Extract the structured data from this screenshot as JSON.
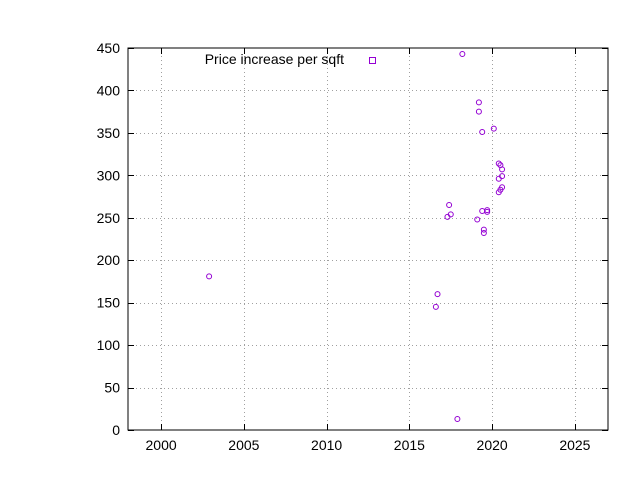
{
  "chart_data": {
    "type": "scatter",
    "title": "",
    "xlabel": "",
    "ylabel": "",
    "xlim": [
      1998,
      2027
    ],
    "ylim": [
      0,
      450
    ],
    "xticks": [
      2000,
      2005,
      2010,
      2015,
      2020,
      2025
    ],
    "yticks": [
      0,
      50,
      100,
      150,
      200,
      250,
      300,
      350,
      400,
      450
    ],
    "grid": true,
    "legend_position": "top-left",
    "series": [
      {
        "name": "Price increase per sqft",
        "color": "#9400d3",
        "marker": "open-circle",
        "points": [
          [
            2002.9,
            181
          ],
          [
            2016.6,
            145
          ],
          [
            2016.7,
            160
          ],
          [
            2017.3,
            251
          ],
          [
            2017.4,
            265
          ],
          [
            2017.5,
            254
          ],
          [
            2017.9,
            13
          ],
          [
            2018.2,
            443
          ],
          [
            2019.1,
            248
          ],
          [
            2019.2,
            386
          ],
          [
            2019.2,
            375
          ],
          [
            2019.4,
            351
          ],
          [
            2019.4,
            258
          ],
          [
            2019.5,
            236
          ],
          [
            2019.5,
            232
          ],
          [
            2019.7,
            259
          ],
          [
            2019.7,
            257
          ],
          [
            2020.1,
            355
          ],
          [
            2020.4,
            314
          ],
          [
            2020.4,
            296
          ],
          [
            2020.4,
            280
          ],
          [
            2020.5,
            312
          ],
          [
            2020.5,
            283
          ],
          [
            2020.6,
            307
          ],
          [
            2020.6,
            299
          ],
          [
            2020.6,
            286
          ]
        ]
      }
    ]
  }
}
